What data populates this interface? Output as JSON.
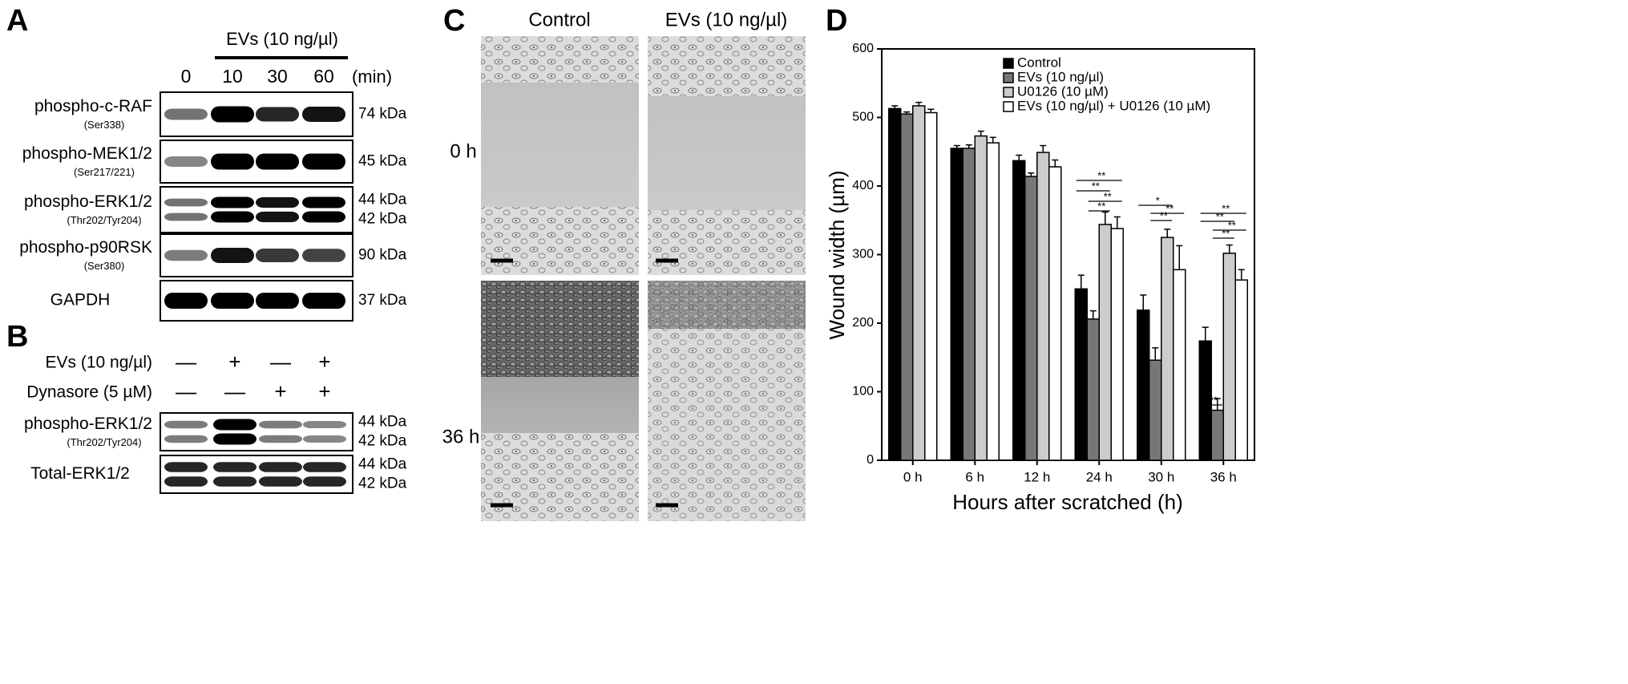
{
  "panels": {
    "a": {
      "letter": "A",
      "treatment": "EVs (10 ng/µl)",
      "lanes": [
        "0",
        "10",
        "30",
        "60"
      ],
      "unit": "(min)",
      "rows": [
        {
          "name": "phospho-c-RAF",
          "site": "(Ser338)",
          "sizes": [
            "74 kDa"
          ]
        },
        {
          "name": "phospho-MEK1/2",
          "site": "(Ser217/221)",
          "sizes": [
            "45 kDa"
          ]
        },
        {
          "name": "phospho-ERK1/2",
          "site": "(Thr202/Tyr204)",
          "sizes": [
            "44 kDa",
            "42 kDa"
          ]
        },
        {
          "name": "phospho-p90RSK",
          "site": "(Ser380)",
          "sizes": [
            "90 kDa"
          ]
        },
        {
          "name": "GAPDH",
          "sizes": [
            "37 kDa"
          ]
        }
      ]
    },
    "b": {
      "letter": "B",
      "conditions": [
        {
          "name": "EVs (10 ng/µl)",
          "signs": [
            "—",
            "+",
            "—",
            "+"
          ]
        },
        {
          "name": "Dynasore (5 µM)",
          "signs": [
            "—",
            "—",
            "+",
            "+"
          ]
        }
      ],
      "rows": [
        {
          "name": "phospho-ERK1/2",
          "site": "(Thr202/Tyr204)",
          "sizes": [
            "44 kDa",
            "42 kDa"
          ]
        },
        {
          "name": "Total-ERK1/2",
          "sizes": [
            "44 kDa",
            "42 kDa"
          ]
        }
      ]
    },
    "c": {
      "letter": "C",
      "columns": [
        "Control",
        "EVs (10 ng/µl)"
      ],
      "rows": [
        "0 h",
        "36 h"
      ]
    },
    "d": {
      "letter": "D"
    }
  },
  "chart_data": {
    "type": "bar",
    "y_label": "Wound width (µm)",
    "x_label": "Hours after scratched (h)",
    "categories": [
      "0 h",
      "6 h",
      "12 h",
      "24 h",
      "30 h",
      "36 h"
    ],
    "series": [
      {
        "name": "Control",
        "color": "#000000",
        "values": [
          513,
          455,
          437,
          250,
          219,
          174
        ],
        "errors": [
          4,
          4,
          8,
          20,
          22,
          20
        ]
      },
      {
        "name": "EVs (10 ng/µl)",
        "color": "#777777",
        "values": [
          505,
          455,
          414,
          206,
          146,
          73
        ],
        "errors": [
          3,
          5,
          5,
          12,
          18,
          17
        ]
      },
      {
        "name": "U0126 (10 µM)",
        "color": "#cccccc",
        "values": [
          517,
          473,
          449,
          344,
          325,
          302
        ],
        "errors": [
          5,
          7,
          10,
          18,
          12,
          12
        ]
      },
      {
        "name": "EVs (10 ng/µl) + U0126 (10 µM)",
        "color": "#ffffff",
        "values": [
          507,
          463,
          428,
          338,
          278,
          263
        ],
        "errors": [
          5,
          8,
          10,
          17,
          35,
          15
        ]
      }
    ],
    "ylim": [
      0,
      600
    ],
    "yticks": [
      0,
      100,
      200,
      300,
      400,
      500,
      600
    ],
    "legend": "upper right",
    "annotations": [
      [],
      [],
      [],
      [
        "**",
        "**",
        "**",
        "**"
      ],
      [
        "*",
        "**",
        "**"
      ],
      [
        "**",
        "**",
        "**",
        "**",
        "**"
      ]
    ]
  }
}
